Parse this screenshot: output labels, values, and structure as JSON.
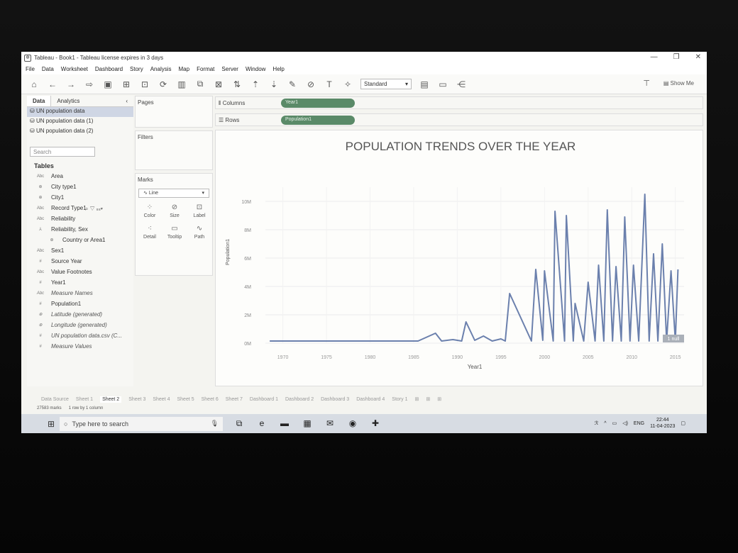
{
  "window": {
    "title": "Tableau - Book1 - Tableau license expires in 3 days"
  },
  "menu": [
    "File",
    "Data",
    "Worksheet",
    "Dashboard",
    "Story",
    "Analysis",
    "Map",
    "Format",
    "Server",
    "Window",
    "Help"
  ],
  "toolbar": {
    "fit_value": "Standard",
    "show_me": "Show Me"
  },
  "data_pane": {
    "tabs": [
      "Data",
      "Analytics"
    ],
    "sources": [
      "UN population data",
      "UN population data (1)",
      "UN population data (2)"
    ],
    "search_placeholder": "Search",
    "tables_header": "Tables",
    "fields": [
      {
        "type": "Abc",
        "name": "Area",
        "style": ""
      },
      {
        "type": "⊕",
        "name": "City type1",
        "style": ""
      },
      {
        "type": "⊕",
        "name": "City1",
        "style": ""
      },
      {
        "type": "Abc",
        "name": "Record Type1",
        "style": ""
      },
      {
        "type": "Abc",
        "name": "Reliability",
        "style": ""
      },
      {
        "type": "⅄",
        "name": "Reliability, Sex",
        "style": ""
      },
      {
        "type": "⊕",
        "name": "Country or Area1",
        "style": "indent"
      },
      {
        "type": "Abc",
        "name": "Sex1",
        "style": ""
      },
      {
        "type": "#",
        "name": "Source Year",
        "style": ""
      },
      {
        "type": "Abc",
        "name": "Value Footnotes",
        "style": ""
      },
      {
        "type": "#",
        "name": "Year1",
        "style": ""
      },
      {
        "type": "Abc",
        "name": "Measure Names",
        "style": "ital"
      },
      {
        "type": "#",
        "name": "Population1",
        "style": ""
      },
      {
        "type": "⊕",
        "name": "Latitude (generated)",
        "style": "ital"
      },
      {
        "type": "⊕",
        "name": "Longitude (generated)",
        "style": "ital"
      },
      {
        "type": "#",
        "name": "UN population data.csv (C...",
        "style": "ital"
      },
      {
        "type": "#",
        "name": "Measure Values",
        "style": "ital"
      }
    ]
  },
  "cards": {
    "pages": "Pages",
    "filters": "Filters",
    "marks": "Marks",
    "mark_type": "Line",
    "mark_buttons": [
      "Color",
      "Size",
      "Label",
      "Detail",
      "Tooltip",
      "Path"
    ]
  },
  "shelves": {
    "columns_label": "Columns",
    "columns_pill": "Year1",
    "rows_label": "Rows",
    "rows_pill": "Population1"
  },
  "chart_data": {
    "type": "line",
    "title": "POPULATION TRENDS OVER THE YEAR",
    "xlabel": "Year1",
    "ylabel": "Population1",
    "xlim": [
      1968,
      2016
    ],
    "ylim": [
      0,
      11000000
    ],
    "x_ticks": [
      1970,
      1975,
      1980,
      1985,
      1990,
      1995,
      2000,
      2005,
      2010,
      2015
    ],
    "y_ticks": [
      {
        "v": 0,
        "label": "0M"
      },
      {
        "v": 2000000,
        "label": "2M"
      },
      {
        "v": 4000000,
        "label": "4M"
      },
      {
        "v": 6000000,
        "label": "6M"
      },
      {
        "v": 8000000,
        "label": "8M"
      },
      {
        "v": 10000000,
        "label": "10M"
      }
    ],
    "null_indicator": "1 null",
    "series": [
      {
        "values": [
          [
            1968.5,
            150000
          ],
          [
            1985.5,
            150000
          ],
          [
            1987.5,
            700000
          ],
          [
            1988.2,
            150000
          ],
          [
            1989.5,
            250000
          ],
          [
            1990.5,
            150000
          ],
          [
            1991,
            1500000
          ],
          [
            1992,
            200000
          ],
          [
            1993,
            500000
          ],
          [
            1994,
            150000
          ],
          [
            1995,
            300000
          ],
          [
            1995.5,
            150000
          ],
          [
            1996,
            3500000
          ],
          [
            1998.5,
            150000
          ],
          [
            1999,
            5200000
          ],
          [
            1999.8,
            200000
          ],
          [
            2000,
            5100000
          ],
          [
            2001,
            150000
          ],
          [
            2001.2,
            9300000
          ],
          [
            2002.3,
            150000
          ],
          [
            2002.5,
            9000000
          ],
          [
            2003.3,
            150000
          ],
          [
            2003.5,
            2800000
          ],
          [
            2004.5,
            150000
          ],
          [
            2005,
            4300000
          ],
          [
            2005.8,
            150000
          ],
          [
            2006.2,
            5500000
          ],
          [
            2006.8,
            150000
          ],
          [
            2007.2,
            9400000
          ],
          [
            2007.8,
            150000
          ],
          [
            2008.2,
            5400000
          ],
          [
            2008.8,
            150000
          ],
          [
            2009.2,
            8900000
          ],
          [
            2009.8,
            150000
          ],
          [
            2010.2,
            5500000
          ],
          [
            2010.8,
            150000
          ],
          [
            2011.5,
            10500000
          ],
          [
            2012,
            150000
          ],
          [
            2012.5,
            6300000
          ],
          [
            2013,
            150000
          ],
          [
            2013.5,
            7000000
          ],
          [
            2014,
            150000
          ],
          [
            2014.5,
            5100000
          ],
          [
            2015,
            150000
          ],
          [
            2015.3,
            5200000
          ]
        ]
      }
    ]
  },
  "sheet_tabs": [
    "Data Source",
    "Sheet 1",
    "Sheet 2",
    "Sheet 3",
    "Sheet 4",
    "Sheet 5",
    "Sheet 6",
    "Sheet 7",
    "Dashboard 1",
    "Dashboard 2",
    "Dashboard 3",
    "Dashboard 4",
    "Story 1"
  ],
  "status": {
    "marks": "27583 marks",
    "rows": "1 row by 1 column"
  },
  "taskbar": {
    "search_placeholder": "Type here to search",
    "lang": "ENG",
    "time": "22:44",
    "date": "11-04-2023"
  },
  "accent": "#6b80ad"
}
